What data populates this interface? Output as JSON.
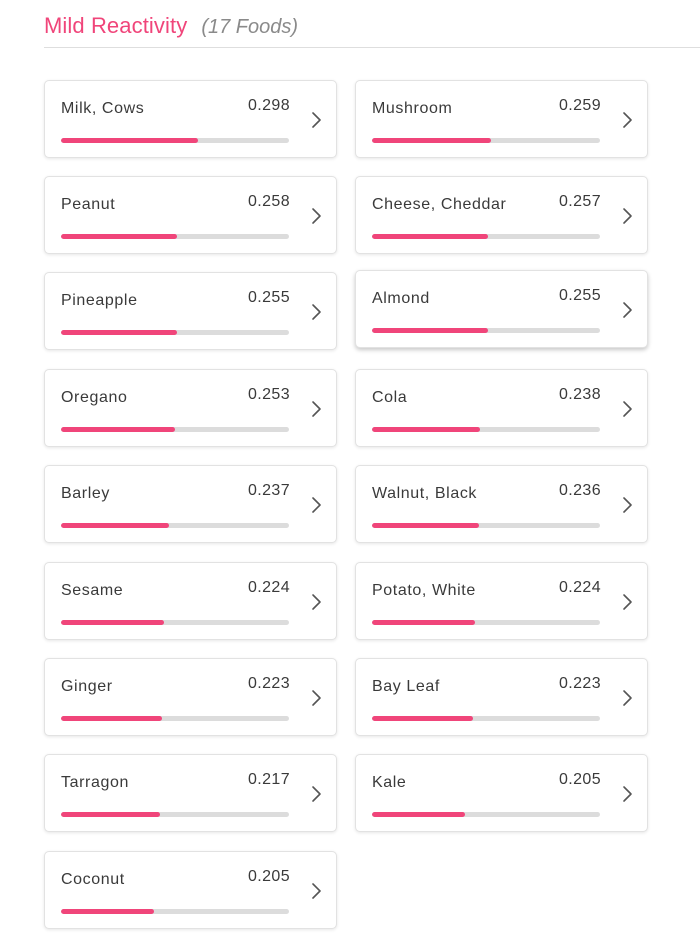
{
  "header": {
    "title": "Mild Reactivity",
    "count": "(17 Foods)"
  },
  "colors": {
    "accent": "#f0457a",
    "track": "#dcdcdc",
    "muted": "#8a8a8a"
  },
  "foods": [
    {
      "name": "Milk, Cows",
      "value": "0.298",
      "fill": 0.6
    },
    {
      "name": "Mushroom",
      "value": "0.259",
      "fill": 0.52
    },
    {
      "name": "Peanut",
      "value": "0.258",
      "fill": 0.51
    },
    {
      "name": "Cheese, Cheddar",
      "value": "0.257",
      "fill": 0.51
    },
    {
      "name": "Pineapple",
      "value": "0.255",
      "fill": 0.51
    },
    {
      "name": "Almond",
      "value": "0.255",
      "fill": 0.51
    },
    {
      "name": "Oregano",
      "value": "0.253",
      "fill": 0.5
    },
    {
      "name": "Cola",
      "value": "0.238",
      "fill": 0.475
    },
    {
      "name": "Barley",
      "value": "0.237",
      "fill": 0.475
    },
    {
      "name": "Walnut, Black",
      "value": "0.236",
      "fill": 0.47
    },
    {
      "name": "Sesame",
      "value": "0.224",
      "fill": 0.45
    },
    {
      "name": "Potato, White",
      "value": "0.224",
      "fill": 0.45
    },
    {
      "name": "Ginger",
      "value": "0.223",
      "fill": 0.445
    },
    {
      "name": "Bay Leaf",
      "value": "0.223",
      "fill": 0.445
    },
    {
      "name": "Tarragon",
      "value": "0.217",
      "fill": 0.435
    },
    {
      "name": "Kale",
      "value": "0.205",
      "fill": 0.41
    },
    {
      "name": "Coconut",
      "value": "0.205",
      "fill": 0.41
    }
  ],
  "chevron_icon": "chevron-right-icon"
}
